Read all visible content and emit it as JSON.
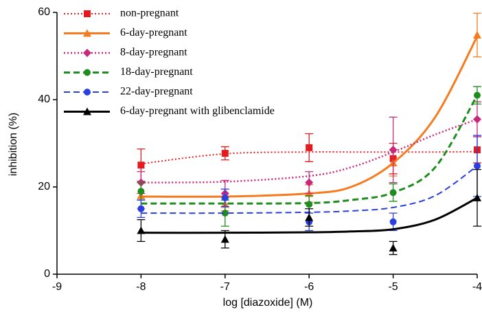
{
  "chart_data": {
    "type": "line",
    "x_label": "log [diazoxide] (M)",
    "y_label": "inhibition (%)",
    "x": [
      -8,
      -7,
      -6,
      -5,
      -4
    ],
    "fit_x": [
      -8,
      -7,
      -6,
      -5.5,
      -5,
      -4.5,
      -4
    ],
    "xlim": [
      -9,
      -4
    ],
    "xticks": [
      -9,
      -8,
      -7,
      -6,
      -5,
      -4
    ],
    "ylim": [
      0,
      60
    ],
    "yticks": [
      0,
      20,
      40,
      60
    ],
    "legend": "upper-left",
    "series": [
      {
        "name": "non-pregnant",
        "color": "#e41a1c",
        "marker": "square",
        "line": "dotted",
        "width": 2,
        "values": [
          25,
          27.7,
          29,
          26.5,
          28.5
        ],
        "errors": [
          3.7,
          1.5,
          3.2,
          3.5,
          3
        ],
        "fit": [
          25.3,
          27.6,
          28,
          28,
          28,
          28,
          28.1
        ]
      },
      {
        "name": "6-day-pregnant",
        "color": "#f47b20",
        "marker": "triangle",
        "line": "solid",
        "width": 3,
        "values": [
          18,
          16,
          18.5,
          25.5,
          54.8
        ],
        "errors": [
          3,
          1.5,
          2,
          3,
          5
        ],
        "fit": [
          17.8,
          17.8,
          18.5,
          20,
          25.5,
          36,
          54.5
        ]
      },
      {
        "name": "8-day-pregnant",
        "color": "#c8287a",
        "marker": "diamond",
        "line": "dotted",
        "width": 2.5,
        "values": [
          21,
          18.5,
          21,
          28.5,
          35.5
        ],
        "errors": [
          2.5,
          3,
          2.5,
          7.5,
          4
        ],
        "fit": [
          21,
          21.2,
          22.5,
          24.5,
          28,
          32,
          35.5
        ]
      },
      {
        "name": "18-day-pregnant",
        "color": "#1e8c1e",
        "marker": "circle",
        "line": "dashed",
        "width": 3,
        "values": [
          19,
          14,
          16,
          18.7,
          41
        ],
        "errors": [
          2,
          3,
          2,
          2,
          2
        ],
        "fit": [
          16.2,
          16.2,
          16.3,
          17,
          18.7,
          24.5,
          41
        ]
      },
      {
        "name": "22-day-pregnant",
        "color": "#2a3fe0",
        "marker": "circle",
        "line": "dashed",
        "width": 2,
        "values": [
          15,
          17.5,
          12,
          12,
          24.8
        ],
        "errors": [
          2,
          2,
          2,
          2,
          7
        ],
        "fit": [
          14,
          14,
          14.2,
          14.5,
          15.3,
          18,
          24.8
        ]
      },
      {
        "name": "6-day-pregnant with glibenclamide",
        "color": "#000000",
        "marker": "triangle",
        "line": "solid",
        "width": 3,
        "values": [
          10,
          8,
          13,
          6,
          17.5
        ],
        "errors": [
          2.5,
          2,
          2,
          1.5,
          6.5
        ],
        "fit": [
          9.5,
          9.5,
          9.6,
          9.8,
          10.3,
          12.5,
          17.5
        ]
      }
    ]
  }
}
